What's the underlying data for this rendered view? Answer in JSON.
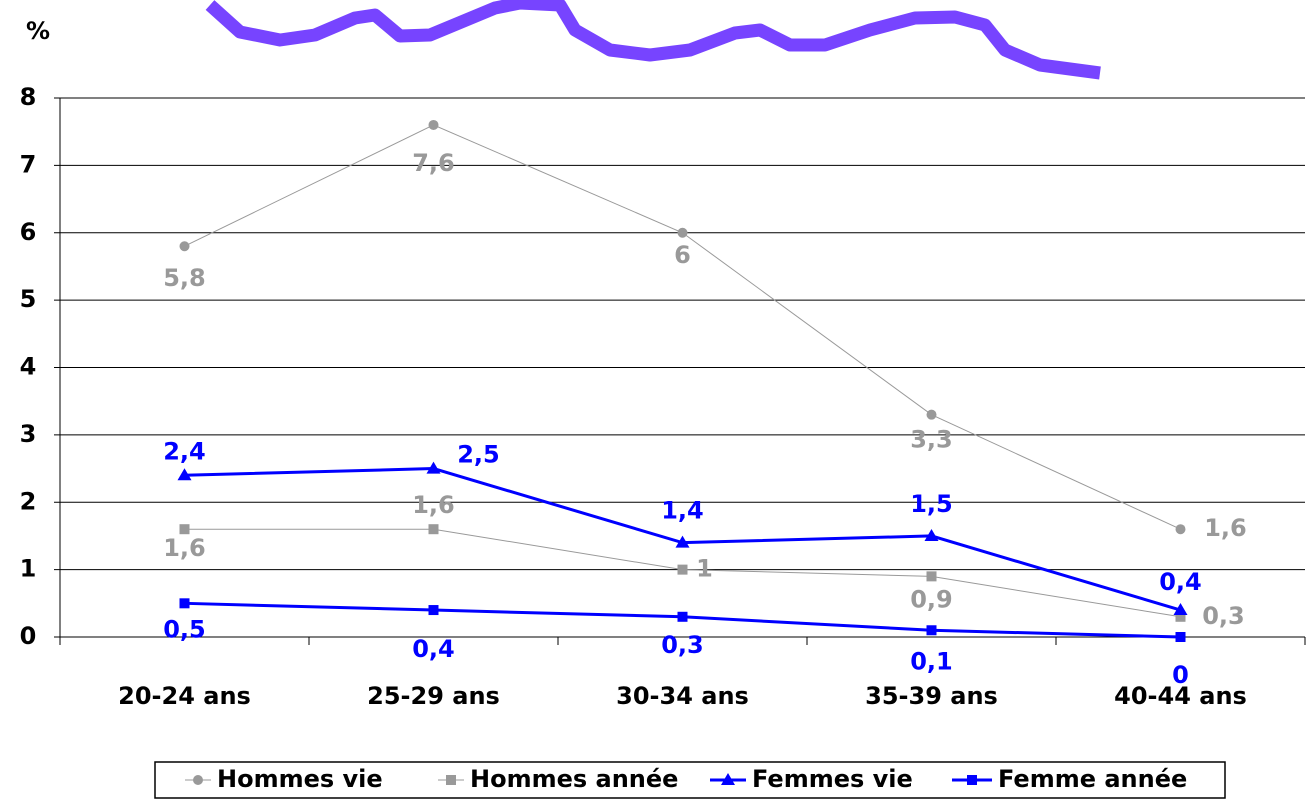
{
  "chart_data": {
    "type": "line",
    "y_axis_label": "%",
    "categories": [
      "20-24 ans",
      "25-29 ans",
      "30-34 ans",
      "35-39 ans",
      "40-44 ans"
    ],
    "series": [
      {
        "name": "Hommes vie",
        "color": "#999999",
        "marker": "circle",
        "values": [
          5.8,
          7.6,
          6,
          3.3,
          1.6
        ],
        "value_labels": [
          "5,8",
          "7,6",
          "6",
          "3,3",
          "1,6"
        ]
      },
      {
        "name": "Hommes année",
        "color": "#999999",
        "marker": "square",
        "values": [
          1.6,
          1.6,
          1,
          0.9,
          0.3
        ],
        "value_labels": [
          "1,6",
          "1,6",
          "1",
          "0,9",
          "0,3"
        ]
      },
      {
        "name": "Femmes vie",
        "color": "#0000ff",
        "marker": "triangle",
        "values": [
          2.4,
          2.5,
          1.4,
          1.5,
          0.4
        ],
        "value_labels": [
          "2,4",
          "2,5",
          "1,4",
          "1,5",
          "0,4"
        ]
      },
      {
        "name": "Femme année",
        "color": "#0000ff",
        "marker": "square",
        "values": [
          0.5,
          0.4,
          0.3,
          0.1,
          0
        ],
        "value_labels": [
          "0,5",
          "0,4",
          "0,3",
          "0,1",
          "0"
        ]
      }
    ],
    "ylim": [
      0,
      8
    ],
    "yticks": [
      0,
      1,
      2,
      3,
      4,
      5,
      6,
      7,
      8
    ],
    "grid": true,
    "legend": "bottom"
  }
}
